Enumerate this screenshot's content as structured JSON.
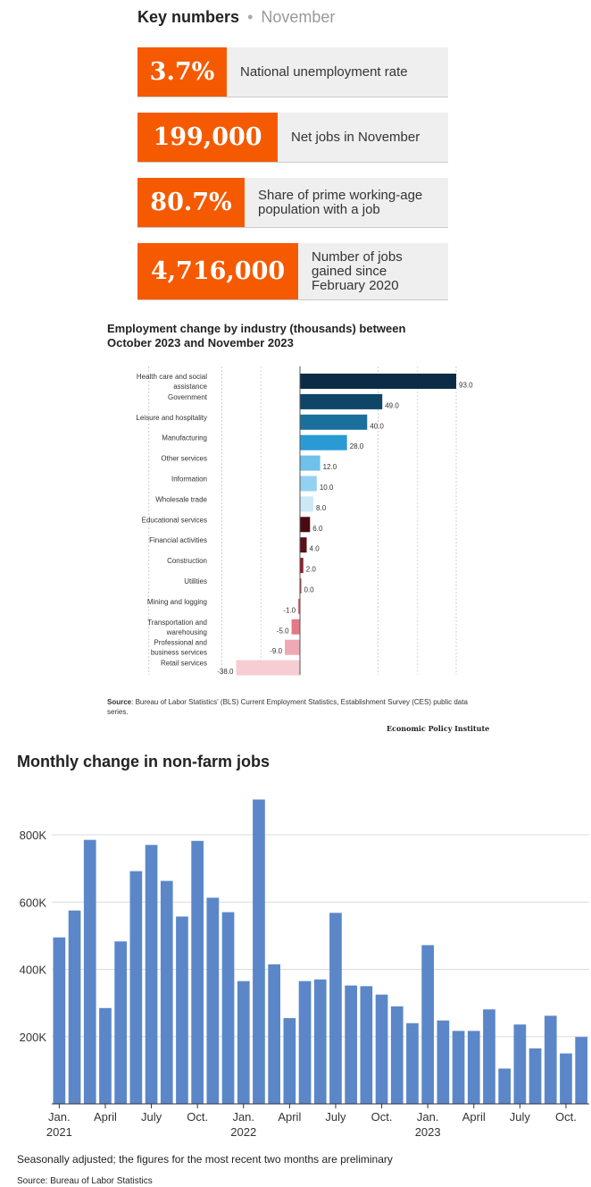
{
  "key_numbers": {
    "title": "Key numbers",
    "separator": "•",
    "period": "November",
    "items": [
      {
        "value": "3.7%",
        "label": "National unemployment rate"
      },
      {
        "value": "199,000",
        "label": "Net jobs in November"
      },
      {
        "value": "80.7%",
        "label": "Share of prime working-age population with a job"
      },
      {
        "value": "4,716,000",
        "label": "Number of jobs gained since February 2020"
      }
    ],
    "accent_color": "#f55a00"
  },
  "chart_data": [
    {
      "type": "bar",
      "orientation": "horizontal",
      "title": "Employment change by industry (thousands) between October 2023 and November 2023",
      "categories": [
        "Health care and social assistance",
        "Government",
        "Leisure and hospitality",
        "Manufacturing",
        "Other services",
        "Information",
        "Wholesale trade",
        "Educational services",
        "Financial activities",
        "Construction",
        "Utilities",
        "Mining and logging",
        "Transportation and warehousing",
        "Professional and business services",
        "Retail services"
      ],
      "values": [
        93.0,
        49.0,
        40.0,
        28.0,
        12.0,
        10.0,
        8.0,
        6.0,
        4.0,
        2.0,
        0.0,
        -1.0,
        -5.0,
        -9.0,
        -38.0
      ],
      "value_labels": [
        "93.0",
        "49.0",
        "40.0",
        "28.0",
        "12.0",
        "10.0",
        "8.0",
        "6.0",
        "4.0",
        "2.0",
        "0.0",
        "-1.0",
        "-5.0",
        "-9.0",
        "-38.0"
      ],
      "colors": [
        "#0c2b45",
        "#0f4566",
        "#1a6f9c",
        "#2a9ad4",
        "#6fc0ea",
        "#93d1f0",
        "#cde9f7",
        "#4a0a12",
        "#5a1018",
        "#8f1f2a",
        "#b33a45",
        "#d45a68",
        "#e37a88",
        "#f0a9b4",
        "#f6cdd3"
      ],
      "xlim": [
        -38,
        93
      ],
      "source_label": "Source",
      "source": ": Bureau of Labor Statistics' (BLS) Current Employment Statistics, Establishment Survey (CES) public data series.",
      "publisher": "Economic Policy Institute"
    },
    {
      "type": "bar",
      "title": "Monthly change in non-farm jobs",
      "x": [
        "2021-01",
        "2021-02",
        "2021-03",
        "2021-04",
        "2021-05",
        "2021-06",
        "2021-07",
        "2021-08",
        "2021-09",
        "2021-10",
        "2021-11",
        "2021-12",
        "2022-01",
        "2022-02",
        "2022-03",
        "2022-04",
        "2022-05",
        "2022-06",
        "2022-07",
        "2022-08",
        "2022-09",
        "2022-10",
        "2022-11",
        "2022-12",
        "2023-01",
        "2023-02",
        "2023-03",
        "2023-04",
        "2023-05",
        "2023-06",
        "2023-07",
        "2023-08",
        "2023-09",
        "2023-10",
        "2023-11"
      ],
      "values": [
        495000,
        575000,
        785000,
        285000,
        483000,
        692000,
        770000,
        663000,
        557000,
        782000,
        613000,
        570000,
        365000,
        905000,
        415000,
        255000,
        365000,
        370000,
        568000,
        352000,
        350000,
        325000,
        290000,
        240000,
        472000,
        248000,
        217000,
        217000,
        281000,
        105000,
        236000,
        165000,
        262000,
        150000,
        199000
      ],
      "ylim": [
        0,
        900000
      ],
      "yticks": [
        "200K",
        "400K",
        "600K",
        "800K"
      ],
      "ytick_values": [
        200000,
        400000,
        600000,
        800000
      ],
      "xtick_labels": [
        {
          "month": "Jan.",
          "year": "2021",
          "index": 0
        },
        {
          "month": "April",
          "year": "",
          "index": 3
        },
        {
          "month": "July",
          "year": "",
          "index": 6
        },
        {
          "month": "Oct.",
          "year": "",
          "index": 9
        },
        {
          "month": "Jan.",
          "year": "2022",
          "index": 12
        },
        {
          "month": "April",
          "year": "",
          "index": 15
        },
        {
          "month": "July",
          "year": "",
          "index": 18
        },
        {
          "month": "Oct.",
          "year": "",
          "index": 21
        },
        {
          "month": "Jan.",
          "year": "2023",
          "index": 24
        },
        {
          "month": "April",
          "year": "",
          "index": 27
        },
        {
          "month": "July",
          "year": "",
          "index": 30
        },
        {
          "month": "Oct.",
          "year": "",
          "index": 33
        }
      ],
      "bar_color": "#5b87c9",
      "note": "Seasonally adjusted; the figures for the most recent two months are preliminary",
      "source": "Source: Bureau of Labor Statistics"
    }
  ]
}
